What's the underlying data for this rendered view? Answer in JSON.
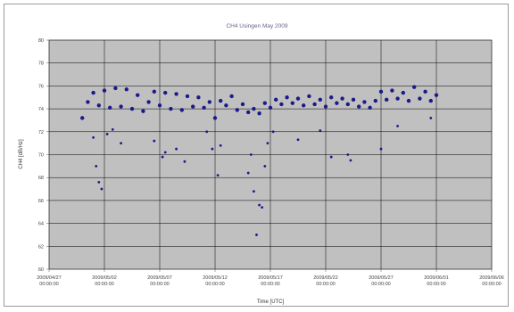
{
  "chart_data": {
    "type": "scatter",
    "title": "CH4 Usingen May 2009",
    "xlabel": "Time [UTC]",
    "ylabel": "CH4 [dB/Hz]",
    "ylim": [
      60,
      80
    ],
    "yticks": [
      "60",
      "62",
      "64",
      "66",
      "68",
      "70",
      "72",
      "74",
      "76",
      "78",
      "80"
    ],
    "xlim": [
      "2009/04/27 00:00",
      "2009/06/06 00:00"
    ],
    "xticks": [
      {
        "date": "2009/04/27",
        "time": "00:00:00"
      },
      {
        "date": "2009/05/02",
        "time": "00:00:00"
      },
      {
        "date": "2009/05/07",
        "time": "00:00:00"
      },
      {
        "date": "2009/05/12",
        "time": "00:00:00"
      },
      {
        "date": "2009/05/17",
        "time": "00:00:00"
      },
      {
        "date": "2009/05/22",
        "time": "00:00:00"
      },
      {
        "date": "2009/05/27",
        "time": "00:00:00"
      },
      {
        "date": "2009/06/01",
        "time": "00:00:00"
      },
      {
        "date": "2009/06/06",
        "time": "00:00:00"
      }
    ],
    "grid": true,
    "plot_background": "#c0c0c0",
    "marker_color": "#1a1a8c",
    "series": [
      {
        "x": [
          "2009/04/30 00:00",
          "2009/04/30 12:00",
          "2009/05/01 00:00",
          "2009/05/01 12:00",
          "2009/05/02 00:00",
          "2009/05/02 12:00",
          "2009/05/03 00:00",
          "2009/05/03 12:00",
          "2009/05/04 00:00",
          "2009/05/04 12:00",
          "2009/05/05 00:00",
          "2009/05/05 12:00",
          "2009/05/06 00:00",
          "2009/05/06 12:00",
          "2009/05/07 00:00",
          "2009/05/07 12:00",
          "2009/05/08 00:00",
          "2009/05/08 12:00",
          "2009/05/09 00:00",
          "2009/05/09 12:00",
          "2009/05/10 00:00",
          "2009/05/10 12:00",
          "2009/05/11 00:00",
          "2009/05/11 12:00",
          "2009/05/12 00:00",
          "2009/05/12 12:00",
          "2009/05/13 00:00",
          "2009/05/13 12:00",
          "2009/05/14 00:00",
          "2009/05/14 12:00",
          "2009/05/15 00:00",
          "2009/05/15 12:00",
          "2009/05/16 00:00",
          "2009/05/16 12:00",
          "2009/05/17 00:00",
          "2009/05/17 12:00",
          "2009/05/18 00:00",
          "2009/05/18 12:00",
          "2009/05/19 00:00",
          "2009/05/19 12:00",
          "2009/05/20 00:00",
          "2009/05/20 12:00",
          "2009/05/21 00:00",
          "2009/05/21 12:00",
          "2009/05/22 00:00",
          "2009/05/22 12:00",
          "2009/05/23 00:00",
          "2009/05/23 12:00",
          "2009/05/24 00:00",
          "2009/05/24 12:00",
          "2009/05/25 00:00",
          "2009/05/25 12:00",
          "2009/05/26 00:00",
          "2009/05/26 12:00",
          "2009/05/27 00:00",
          "2009/05/27 12:00",
          "2009/05/28 00:00",
          "2009/05/28 12:00",
          "2009/05/29 00:00",
          "2009/05/29 12:00",
          "2009/05/30 00:00",
          "2009/05/30 12:00",
          "2009/05/31 00:00",
          "2009/05/31 12:00",
          "2009/06/01 00:00"
        ],
        "y": [
          73.2,
          74.6,
          75.4,
          74.3,
          75.6,
          74.1,
          75.8,
          74.2,
          75.7,
          74.0,
          75.2,
          73.8,
          74.6,
          75.5,
          74.3,
          75.4,
          74.0,
          75.3,
          73.9,
          75.1,
          74.2,
          75.0,
          74.1,
          74.6,
          73.2,
          74.7,
          74.3,
          75.1,
          73.9,
          74.4,
          73.7,
          74.0,
          73.6,
          74.5,
          74.1,
          74.8,
          74.4,
          75.0,
          74.5,
          74.9,
          74.3,
          75.1,
          74.4,
          74.8,
          74.2,
          75.0,
          74.5,
          74.9,
          74.4,
          74.8,
          74.2,
          74.6,
          74.1,
          74.7,
          75.5,
          74.8,
          75.6,
          74.9,
          75.4,
          74.7,
          75.9,
          74.9,
          75.5,
          74.7,
          75.2
        ]
      },
      {
        "x": [
          "2009/05/01 00:00",
          "2009/05/01 06:00",
          "2009/05/01 12:00",
          "2009/05/01 18:00",
          "2009/05/02 06:00",
          "2009/05/02 18:00",
          "2009/05/03 12:00",
          "2009/05/06 12:00",
          "2009/05/07 06:00",
          "2009/05/07 12:00",
          "2009/05/08 12:00",
          "2009/05/09 06:00",
          "2009/05/11 06:00",
          "2009/05/11 18:00",
          "2009/05/12 06:00",
          "2009/05/12 12:00",
          "2009/05/15 00:00",
          "2009/05/15 06:00",
          "2009/05/15 12:00",
          "2009/05/15 18:00",
          "2009/05/16 00:00",
          "2009/05/16 06:00",
          "2009/05/16 12:00",
          "2009/05/16 18:00",
          "2009/05/17 06:00",
          "2009/05/19 12:00",
          "2009/05/21 12:00",
          "2009/05/22 12:00",
          "2009/05/24 00:00",
          "2009/05/24 06:00",
          "2009/05/27 00:00",
          "2009/05/28 12:00",
          "2009/05/31 12:00"
        ],
        "y": [
          71.5,
          69.0,
          67.6,
          67.0,
          71.8,
          72.2,
          71.0,
          71.2,
          69.8,
          70.2,
          70.5,
          69.4,
          72.0,
          70.5,
          68.2,
          70.8,
          68.4,
          70.0,
          66.8,
          63.0,
          65.6,
          65.4,
          69.0,
          71.0,
          72.0,
          71.3,
          72.1,
          69.8,
          70.0,
          69.5,
          70.5,
          72.5,
          73.2
        ]
      }
    ]
  }
}
